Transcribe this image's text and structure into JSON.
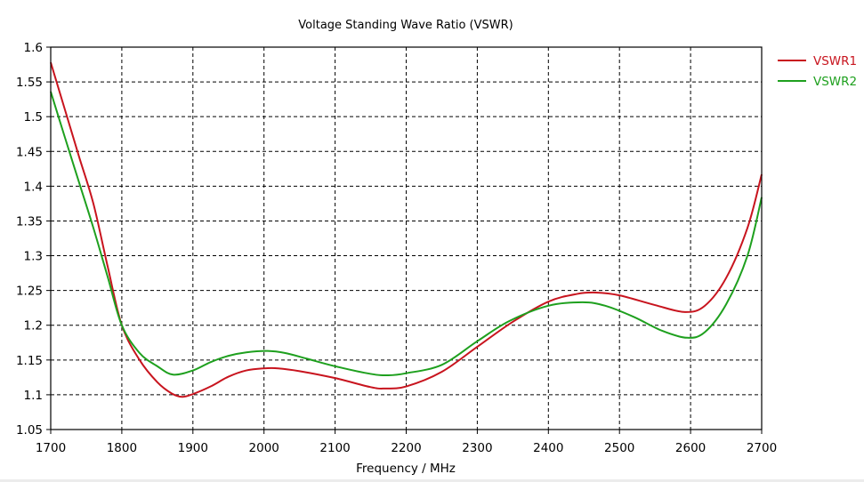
{
  "chart_data": {
    "type": "line",
    "title": "Voltage Standing Wave Ratio (VSWR)",
    "xlabel": "Frequency / MHz",
    "ylabel": "",
    "xlim": [
      1700,
      2700
    ],
    "ylim": [
      1.05,
      1.6
    ],
    "xticks": [
      1700,
      1800,
      1900,
      2000,
      2100,
      2200,
      2300,
      2400,
      2500,
      2600,
      2700
    ],
    "yticks": [
      1.05,
      1.1,
      1.15,
      1.2,
      1.25,
      1.3,
      1.35,
      1.4,
      1.45,
      1.5,
      1.55,
      1.6
    ],
    "xtick_labels": [
      "1700",
      "1800",
      "1900",
      "2000",
      "2100",
      "2200",
      "2300",
      "2400",
      "2500",
      "2600",
      "2700"
    ],
    "ytick_labels": [
      "1.05",
      "1.1",
      "1.15",
      "1.2",
      "1.25",
      "1.3",
      "1.35",
      "1.4",
      "1.45",
      "1.5",
      "1.55",
      "1.6"
    ],
    "grid": true,
    "legend_position": "right-top",
    "series": [
      {
        "name": "VSWR1",
        "color": "#c8141e",
        "x": [
          1700,
          1720,
          1740,
          1760,
          1780,
          1800,
          1825,
          1850,
          1870,
          1885,
          1900,
          1925,
          1950,
          1975,
          2000,
          2020,
          2050,
          2100,
          2150,
          2170,
          2200,
          2250,
          2300,
          2350,
          2400,
          2440,
          2467,
          2500,
          2550,
          2592,
          2620,
          2650,
          2680,
          2700
        ],
        "y": [
          1.578,
          1.51,
          1.442,
          1.375,
          1.285,
          1.2,
          1.15,
          1.118,
          1.102,
          1.097,
          1.101,
          1.112,
          1.126,
          1.135,
          1.138,
          1.138,
          1.134,
          1.124,
          1.111,
          1.109,
          1.112,
          1.133,
          1.169,
          1.205,
          1.234,
          1.245,
          1.247,
          1.243,
          1.229,
          1.219,
          1.228,
          1.268,
          1.34,
          1.417
        ]
      },
      {
        "name": "VSWR2",
        "color": "#1ea01e",
        "x": [
          1700,
          1720,
          1740,
          1760,
          1780,
          1800,
          1825,
          1850,
          1872,
          1900,
          1925,
          1950,
          1975,
          2005,
          2030,
          2060,
          2100,
          2150,
          2175,
          2200,
          2250,
          2300,
          2345,
          2400,
          2448,
          2480,
          2520,
          2560,
          2595,
          2620,
          2650,
          2680,
          2700
        ],
        "y": [
          1.536,
          1.47,
          1.405,
          1.34,
          1.27,
          1.2,
          1.16,
          1.141,
          1.129,
          1.135,
          1.147,
          1.156,
          1.161,
          1.163,
          1.16,
          1.152,
          1.141,
          1.13,
          1.128,
          1.131,
          1.143,
          1.177,
          1.206,
          1.228,
          1.233,
          1.228,
          1.212,
          1.192,
          1.182,
          1.19,
          1.23,
          1.3,
          1.384
        ]
      }
    ]
  }
}
